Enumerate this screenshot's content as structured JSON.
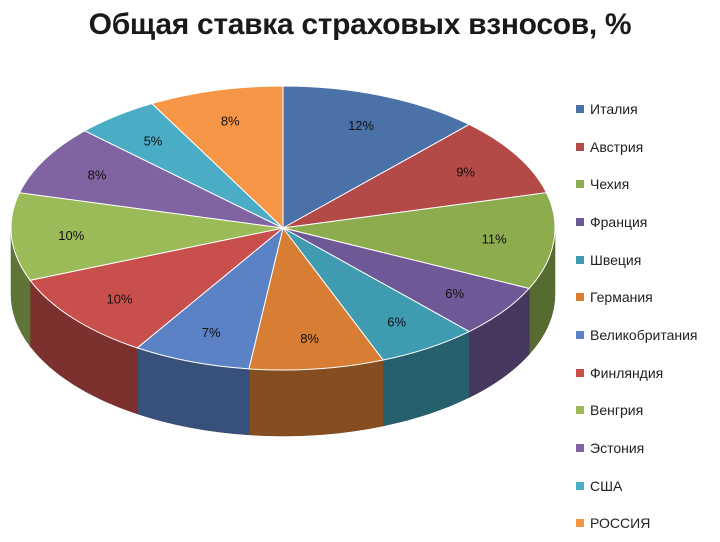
{
  "chart_data": {
    "type": "pie",
    "title": "Общая ставка страховых  взносов, %",
    "legend_position": "right",
    "slices": [
      {
        "name": "Италия",
        "value": 12,
        "label": "12%",
        "color": "#4a72a8"
      },
      {
        "name": "Австрия",
        "value": 9,
        "label": "9%",
        "color": "#b34a48"
      },
      {
        "name": "Чехия",
        "value": 11,
        "label": "11%",
        "color": "#8cac4e"
      },
      {
        "name": "Франция",
        "value": 6,
        "label": "6%",
        "color": "#6f5896"
      },
      {
        "name": "Швеция",
        "value": 6,
        "label": "6%",
        "color": "#3f9bb0"
      },
      {
        "name": "Германия",
        "value": 8,
        "label": "8%",
        "color": "#d87d34"
      },
      {
        "name": "Великобритания",
        "value": 7,
        "label": "7%",
        "color": "#5b82c4"
      },
      {
        "name": "Финляндия",
        "value": 10,
        "label": "10%",
        "color": "#c94f4c"
      },
      {
        "name": "Венгрия",
        "value": 10,
        "label": "10%",
        "color": "#9bbb59"
      },
      {
        "name": "Эстония",
        "value": 8,
        "label": "8%",
        "color": "#8064a2"
      },
      {
        "name": "США",
        "value": 5,
        "label": "5%",
        "color": "#4bacc6"
      },
      {
        "name": "РОССИЯ",
        "value": 8,
        "label": "8%",
        "color": "#f79646"
      }
    ]
  }
}
